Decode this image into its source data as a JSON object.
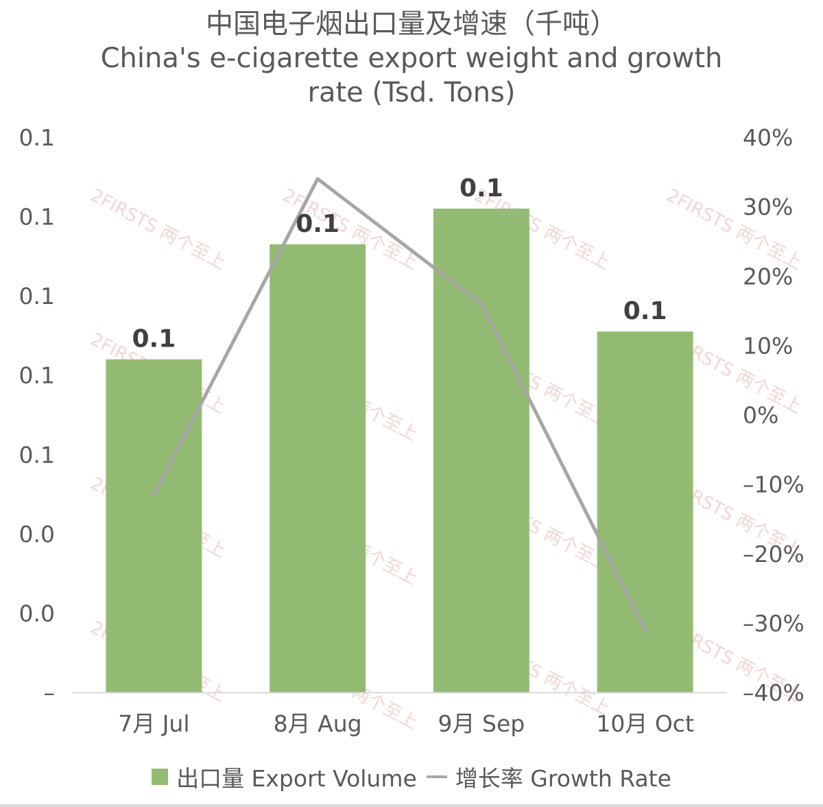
{
  "chart_data": {
    "type": "bar+line",
    "title_cn": "中国电子烟出口量及增速（千吨）",
    "title_en_line1": "China's e-cigarette export weight and growth",
    "title_en_line2": "rate (Tsd. Tons)",
    "categories": [
      "7月 Jul",
      "8月 Aug",
      "9月 Sep",
      "10月 Oct"
    ],
    "series": [
      {
        "name": "出口量 Export Volume",
        "type": "bar",
        "axis": "left",
        "color": "#94bb74",
        "values": [
          0.084,
          0.113,
          0.122,
          0.091
        ],
        "labels": [
          "0.1",
          "0.1",
          "0.1",
          "0.1"
        ]
      },
      {
        "name": "增长率 Growth Rate",
        "type": "line",
        "axis": "right",
        "color": "#a6a6a6",
        "values": [
          -11.5,
          34,
          16,
          -31
        ]
      }
    ],
    "left_axis": {
      "ylim": [
        0,
        0.14
      ],
      "tick_values": [
        0,
        0.02,
        0.04,
        0.06,
        0.08,
        0.1,
        0.12,
        0.14
      ],
      "tick_labels": [
        "–",
        "0.0",
        "0.0",
        "0.1",
        "0.1",
        "0.1",
        "0.1",
        "0.1"
      ]
    },
    "right_axis": {
      "ylim": [
        -40,
        40
      ],
      "tick_values": [
        -40,
        -30,
        -20,
        -10,
        0,
        10,
        20,
        30,
        40
      ],
      "tick_labels": [
        "–40%",
        "–30%",
        "–20%",
        "–10%",
        "0%",
        "10%",
        "20%",
        "30%",
        "40%"
      ]
    },
    "legend": {
      "position": "bottom"
    }
  },
  "watermark": {
    "text": "2FIRSTS 两个至上"
  }
}
